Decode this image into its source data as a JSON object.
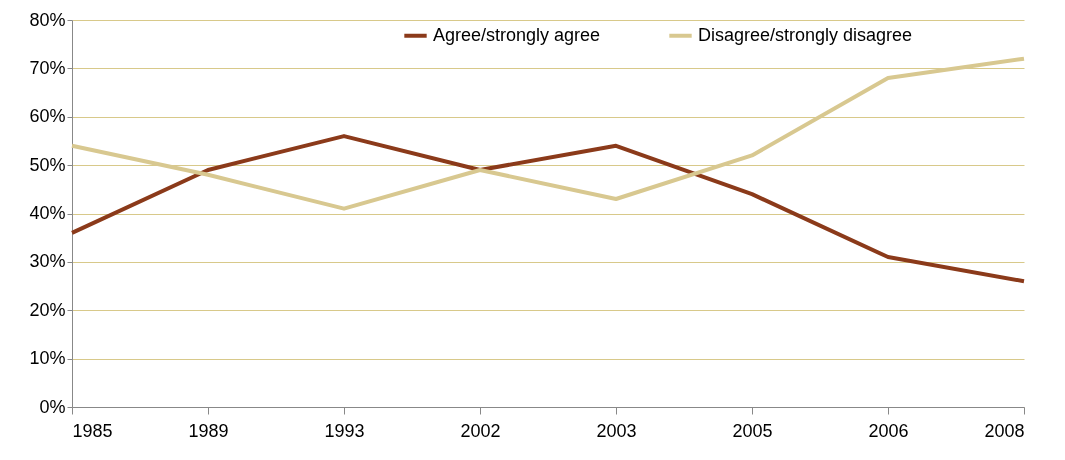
{
  "chart_data": {
    "type": "line",
    "categories": [
      "1985",
      "1989",
      "1993",
      "2002",
      "2003",
      "2005",
      "2006",
      "2008"
    ],
    "series": [
      {
        "name": "Agree/strongly agree",
        "color": "#8b3a1a",
        "values": [
          36,
          49,
          56,
          49,
          54,
          44,
          31,
          26
        ]
      },
      {
        "name": "Disagree/strongly disagree",
        "color": "#d8c890",
        "values": [
          54,
          48,
          41,
          49,
          43,
          52,
          68,
          72
        ]
      }
    ],
    "ylim": [
      0,
      80
    ],
    "yticks": [
      {
        "value": 0,
        "label": "0%"
      },
      {
        "value": 10,
        "label": "10%"
      },
      {
        "value": 20,
        "label": "20%"
      },
      {
        "value": 30,
        "label": "30%"
      },
      {
        "value": 40,
        "label": "40%"
      },
      {
        "value": 50,
        "label": "50%"
      },
      {
        "value": 60,
        "label": "60%"
      },
      {
        "value": 70,
        "label": "70%"
      },
      {
        "value": 80,
        "label": "80%"
      }
    ],
    "grid": "y",
    "legend": "top",
    "line_style": "solid",
    "marker": "none"
  }
}
